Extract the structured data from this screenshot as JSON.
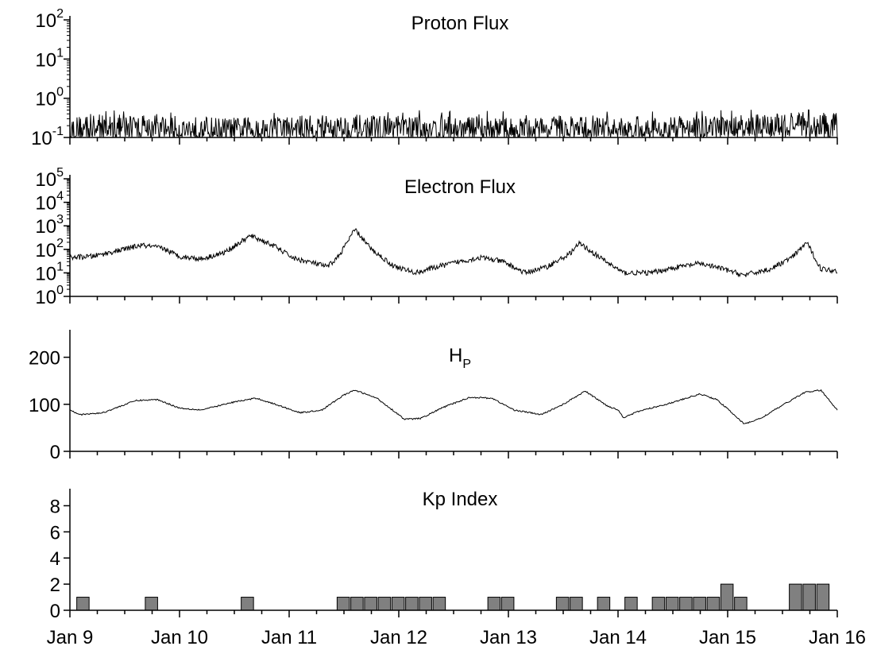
{
  "chart_data": [
    {
      "type": "line",
      "title": "Proton Flux",
      "yscale": "log",
      "ylim": [
        0.1,
        100
      ],
      "yticks": [
        {
          "base": "10",
          "exp": "-1"
        },
        {
          "base": "10",
          "exp": "0"
        },
        {
          "base": "10",
          "exp": "1"
        },
        {
          "base": "10",
          "exp": "2"
        }
      ],
      "xlim": [
        "Jan 9",
        "Jan 16"
      ],
      "series": [
        {
          "x": [
            9.0,
            9.5,
            10.0,
            10.5,
            11.0,
            11.5,
            12.0,
            12.5,
            13.0,
            13.5,
            14.0,
            14.5,
            15.0,
            15.5,
            16.0
          ],
          "y": [
            0.18,
            0.19,
            0.18,
            0.17,
            0.18,
            0.19,
            0.18,
            0.18,
            0.17,
            0.18,
            0.17,
            0.18,
            0.18,
            0.2,
            0.22
          ],
          "noise": "high-frequency spikes between 0.1 and ~0.5"
        }
      ]
    },
    {
      "type": "line",
      "title": "Electron Flux",
      "yscale": "log",
      "ylim": [
        1,
        100000
      ],
      "yticks": [
        {
          "base": "10",
          "exp": "0"
        },
        {
          "base": "10",
          "exp": "1"
        },
        {
          "base": "10",
          "exp": "2"
        },
        {
          "base": "10",
          "exp": "3"
        },
        {
          "base": "10",
          "exp": "4"
        },
        {
          "base": "10",
          "exp": "5"
        }
      ],
      "xlim": [
        "Jan 9",
        "Jan 16"
      ],
      "series": [
        {
          "x": [
            9.0,
            9.2,
            9.45,
            9.65,
            9.85,
            10.0,
            10.2,
            10.4,
            10.65,
            10.85,
            11.05,
            11.2,
            11.35,
            11.45,
            11.6,
            11.75,
            11.95,
            12.15,
            12.35,
            12.55,
            12.75,
            12.95,
            13.15,
            13.35,
            13.55,
            13.65,
            13.85,
            14.05,
            14.3,
            14.55,
            14.75,
            14.95,
            15.15,
            15.4,
            15.6,
            15.72,
            15.85,
            16.0
          ],
          "y": [
            45,
            50,
            90,
            150,
            110,
            50,
            40,
            70,
            380,
            150,
            40,
            28,
            18,
            50,
            700,
            100,
            20,
            10,
            18,
            30,
            45,
            30,
            10,
            18,
            60,
            180,
            40,
            10,
            10,
            18,
            25,
            15,
            8,
            15,
            50,
            200,
            15,
            12
          ],
          "noise": "moderate jitter"
        }
      ]
    },
    {
      "type": "line",
      "title": "H",
      "title_sub": "P",
      "ylim": [
        0,
        250
      ],
      "yticks": [
        "0",
        "100",
        "200"
      ],
      "xlim": [
        "Jan 9",
        "Jan 16"
      ],
      "series": [
        {
          "x": [
            9.0,
            9.1,
            9.3,
            9.6,
            9.8,
            10.0,
            10.2,
            10.5,
            10.7,
            10.9,
            11.1,
            11.3,
            11.5,
            11.6,
            11.8,
            12.0,
            12.05,
            12.2,
            12.4,
            12.65,
            12.85,
            13.05,
            13.3,
            13.5,
            13.7,
            13.9,
            14.0,
            14.05,
            14.2,
            14.5,
            14.75,
            14.9,
            15.05,
            15.15,
            15.3,
            15.5,
            15.7,
            15.85,
            16.0
          ],
          "y": [
            88,
            78,
            82,
            108,
            110,
            92,
            88,
            105,
            113,
            98,
            82,
            88,
            120,
            130,
            113,
            78,
            68,
            70,
            93,
            115,
            113,
            88,
            78,
            100,
            128,
            97,
            88,
            72,
            86,
            104,
            122,
            110,
            80,
            58,
            70,
            98,
            125,
            130,
            88
          ],
          "noise": "small jitter"
        }
      ]
    },
    {
      "type": "bar",
      "title": "Kp Index",
      "ylim": [
        0,
        9
      ],
      "yticks": [
        "0",
        "2",
        "4",
        "6",
        "8"
      ],
      "xticklabels": [
        "Jan 9",
        "Jan 10",
        "Jan 11",
        "Jan 12",
        "Jan 13",
        "Jan 14",
        "Jan 15",
        "Jan 16"
      ],
      "bar_width_days": 0.125,
      "bars": [
        {
          "start": 9.0625,
          "value": 1
        },
        {
          "start": 9.6875,
          "value": 1
        },
        {
          "start": 10.5625,
          "value": 1
        },
        {
          "start": 11.4375,
          "value": 1
        },
        {
          "start": 11.5625,
          "value": 1
        },
        {
          "start": 11.6875,
          "value": 1
        },
        {
          "start": 11.8125,
          "value": 1
        },
        {
          "start": 11.9375,
          "value": 1
        },
        {
          "start": 12.0625,
          "value": 1
        },
        {
          "start": 12.1875,
          "value": 1
        },
        {
          "start": 12.3125,
          "value": 1
        },
        {
          "start": 12.8125,
          "value": 1
        },
        {
          "start": 12.9375,
          "value": 1
        },
        {
          "start": 13.4375,
          "value": 1
        },
        {
          "start": 13.5625,
          "value": 1
        },
        {
          "start": 13.8125,
          "value": 1
        },
        {
          "start": 14.0625,
          "value": 1
        },
        {
          "start": 14.3125,
          "value": 1
        },
        {
          "start": 14.4375,
          "value": 1
        },
        {
          "start": 14.5625,
          "value": 1
        },
        {
          "start": 14.6875,
          "value": 1
        },
        {
          "start": 14.8125,
          "value": 1
        },
        {
          "start": 14.9375,
          "value": 2
        },
        {
          "start": 15.0625,
          "value": 1
        },
        {
          "start": 15.5625,
          "value": 2
        },
        {
          "start": 15.6875,
          "value": 2
        },
        {
          "start": 15.8125,
          "value": 2
        }
      ],
      "bar_color": "#808080"
    }
  ]
}
